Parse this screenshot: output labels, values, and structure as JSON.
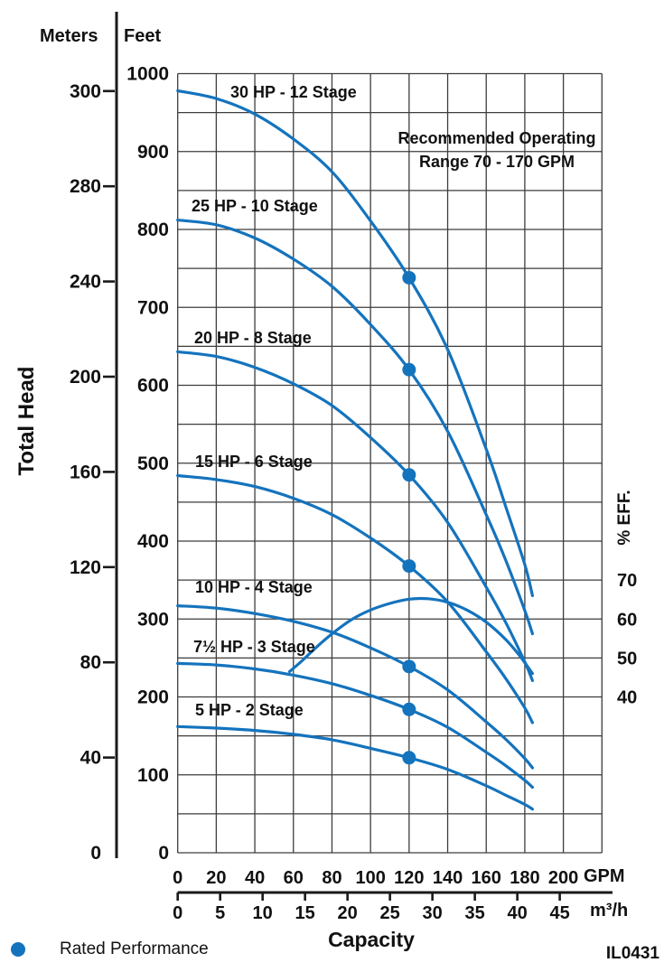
{
  "colors": {
    "curve": "#1473bd",
    "grid": "#3d3d3d",
    "axis": "#1a1a1a",
    "text": "#111111",
    "background": "#ffffff"
  },
  "header": {
    "meters": "Meters",
    "feet": "Feet"
  },
  "left_axis": {
    "title": "Total Head",
    "meters_ticks": [
      "0",
      "40",
      "80",
      "120",
      "160",
      "200",
      "240",
      "280",
      "300"
    ],
    "feet_ticks": [
      "0",
      "100",
      "200",
      "300",
      "400",
      "500",
      "600",
      "700",
      "800",
      "900",
      "1000"
    ]
  },
  "bottom_axis": {
    "gpm_ticks": [
      "0",
      "20",
      "40",
      "60",
      "80",
      "100",
      "120",
      "140",
      "160",
      "180",
      "200"
    ],
    "gpm_unit": "GPM",
    "m3h_ticks": [
      "0",
      "5",
      "10",
      "15",
      "20",
      "25",
      "30",
      "35",
      "40",
      "45"
    ],
    "m3h_unit": "m³/h",
    "title": "Capacity"
  },
  "right_axis": {
    "title": "% EFF.",
    "ticks": [
      "70",
      "60",
      "50",
      "40"
    ]
  },
  "annotation": {
    "line1": "Recommended Operating",
    "line2": "Range 70 - 170 GPM"
  },
  "legend": {
    "rated_label": "Rated Performance"
  },
  "figure_id": "IL0431",
  "chart_data": {
    "type": "line",
    "title": "Submersible pump performance curves",
    "xlabel": "Capacity",
    "ylabel": "Total Head",
    "x_units": [
      "GPM",
      "m³/h"
    ],
    "x_range_gpm": [
      0,
      220
    ],
    "y_range_feet": [
      0,
      1000
    ],
    "grid": "on",
    "recommended_operating_range_gpm": [
      70,
      170
    ],
    "rated_flow_gpm": 120,
    "efficiency_axis": {
      "unit": "% EFF.",
      "ticks": [
        70,
        60,
        50,
        40
      ],
      "feet_per_percent": 5
    },
    "pump_curves": [
      {
        "label": "30 HP - 12 Stage",
        "hp": 30,
        "stages": 12,
        "points_gpm_feet": [
          [
            0,
            978
          ],
          [
            20,
            968
          ],
          [
            40,
            948
          ],
          [
            60,
            916
          ],
          [
            80,
            874
          ],
          [
            100,
            811
          ],
          [
            120,
            738
          ],
          [
            140,
            646
          ],
          [
            160,
            518
          ],
          [
            170,
            445
          ],
          [
            180,
            370
          ],
          [
            184,
            330
          ]
        ],
        "rated_point_gpm_feet": [
          120,
          738
        ]
      },
      {
        "label": "25 HP - 10 Stage",
        "hp": 25,
        "stages": 10,
        "points_gpm_feet": [
          [
            0,
            812
          ],
          [
            20,
            806
          ],
          [
            40,
            789
          ],
          [
            60,
            762
          ],
          [
            80,
            727
          ],
          [
            100,
            678
          ],
          [
            120,
            620
          ],
          [
            140,
            541
          ],
          [
            160,
            434
          ],
          [
            170,
            376
          ],
          [
            180,
            311
          ],
          [
            184,
            281
          ]
        ],
        "rated_point_gpm_feet": [
          120,
          620
        ]
      },
      {
        "label": "20 HP - 8 Stage",
        "hp": 20,
        "stages": 8,
        "points_gpm_feet": [
          [
            0,
            643
          ],
          [
            20,
            637
          ],
          [
            40,
            623
          ],
          [
            60,
            602
          ],
          [
            80,
            574
          ],
          [
            100,
            533
          ],
          [
            120,
            485
          ],
          [
            140,
            424
          ],
          [
            160,
            341
          ],
          [
            170,
            296
          ],
          [
            180,
            245
          ],
          [
            184,
            221
          ]
        ],
        "rated_point_gpm_feet": [
          120,
          485
        ]
      },
      {
        "label": "15 HP - 6 Stage",
        "hp": 15,
        "stages": 6,
        "points_gpm_feet": [
          [
            0,
            484
          ],
          [
            20,
            479
          ],
          [
            40,
            470
          ],
          [
            60,
            455
          ],
          [
            80,
            434
          ],
          [
            100,
            404
          ],
          [
            120,
            368
          ],
          [
            140,
            322
          ],
          [
            160,
            258
          ],
          [
            170,
            224
          ],
          [
            180,
            186
          ],
          [
            184,
            167
          ]
        ],
        "rated_point_gpm_feet": [
          120,
          368
        ]
      },
      {
        "label": "10 HP - 4 Stage",
        "hp": 10,
        "stages": 4,
        "points_gpm_feet": [
          [
            0,
            317
          ],
          [
            20,
            314
          ],
          [
            40,
            307
          ],
          [
            60,
            297
          ],
          [
            80,
            283
          ],
          [
            100,
            263
          ],
          [
            120,
            239
          ],
          [
            140,
            209
          ],
          [
            160,
            168
          ],
          [
            170,
            146
          ],
          [
            180,
            121
          ],
          [
            184,
            109
          ]
        ],
        "rated_point_gpm_feet": [
          120,
          239
        ]
      },
      {
        "label": "7½ HP - 3 Stage",
        "hp": 7.5,
        "stages": 3,
        "points_gpm_feet": [
          [
            0,
            243
          ],
          [
            20,
            241
          ],
          [
            40,
            236
          ],
          [
            60,
            228
          ],
          [
            80,
            217
          ],
          [
            100,
            202
          ],
          [
            120,
            184
          ],
          [
            140,
            161
          ],
          [
            160,
            129
          ],
          [
            170,
            112
          ],
          [
            180,
            93
          ],
          [
            184,
            84
          ]
        ],
        "rated_point_gpm_feet": [
          120,
          184
        ]
      },
      {
        "label": "5 HP - 2 Stage",
        "hp": 5,
        "stages": 2,
        "points_gpm_feet": [
          [
            0,
            162
          ],
          [
            20,
            160
          ],
          [
            40,
            157
          ],
          [
            60,
            152
          ],
          [
            80,
            145
          ],
          [
            100,
            134
          ],
          [
            120,
            122
          ],
          [
            140,
            107
          ],
          [
            160,
            86
          ],
          [
            170,
            74
          ],
          [
            180,
            62
          ],
          [
            184,
            56
          ]
        ],
        "rated_point_gpm_feet": [
          120,
          122
        ]
      }
    ],
    "efficiency_curve": {
      "label": "% EFF.",
      "points_gpm_percent": [
        [
          58,
          46.5
        ],
        [
          65,
          49.5
        ],
        [
          72,
          52.8
        ],
        [
          80,
          56.2
        ],
        [
          90,
          59.8
        ],
        [
          100,
          62.3
        ],
        [
          110,
          64.0
        ],
        [
          120,
          65.1
        ],
        [
          130,
          65.2
        ],
        [
          140,
          64.3
        ],
        [
          150,
          62.3
        ],
        [
          160,
          59.2
        ],
        [
          170,
          54.8
        ],
        [
          177,
          50.8
        ],
        [
          184,
          46.0
        ]
      ]
    }
  }
}
